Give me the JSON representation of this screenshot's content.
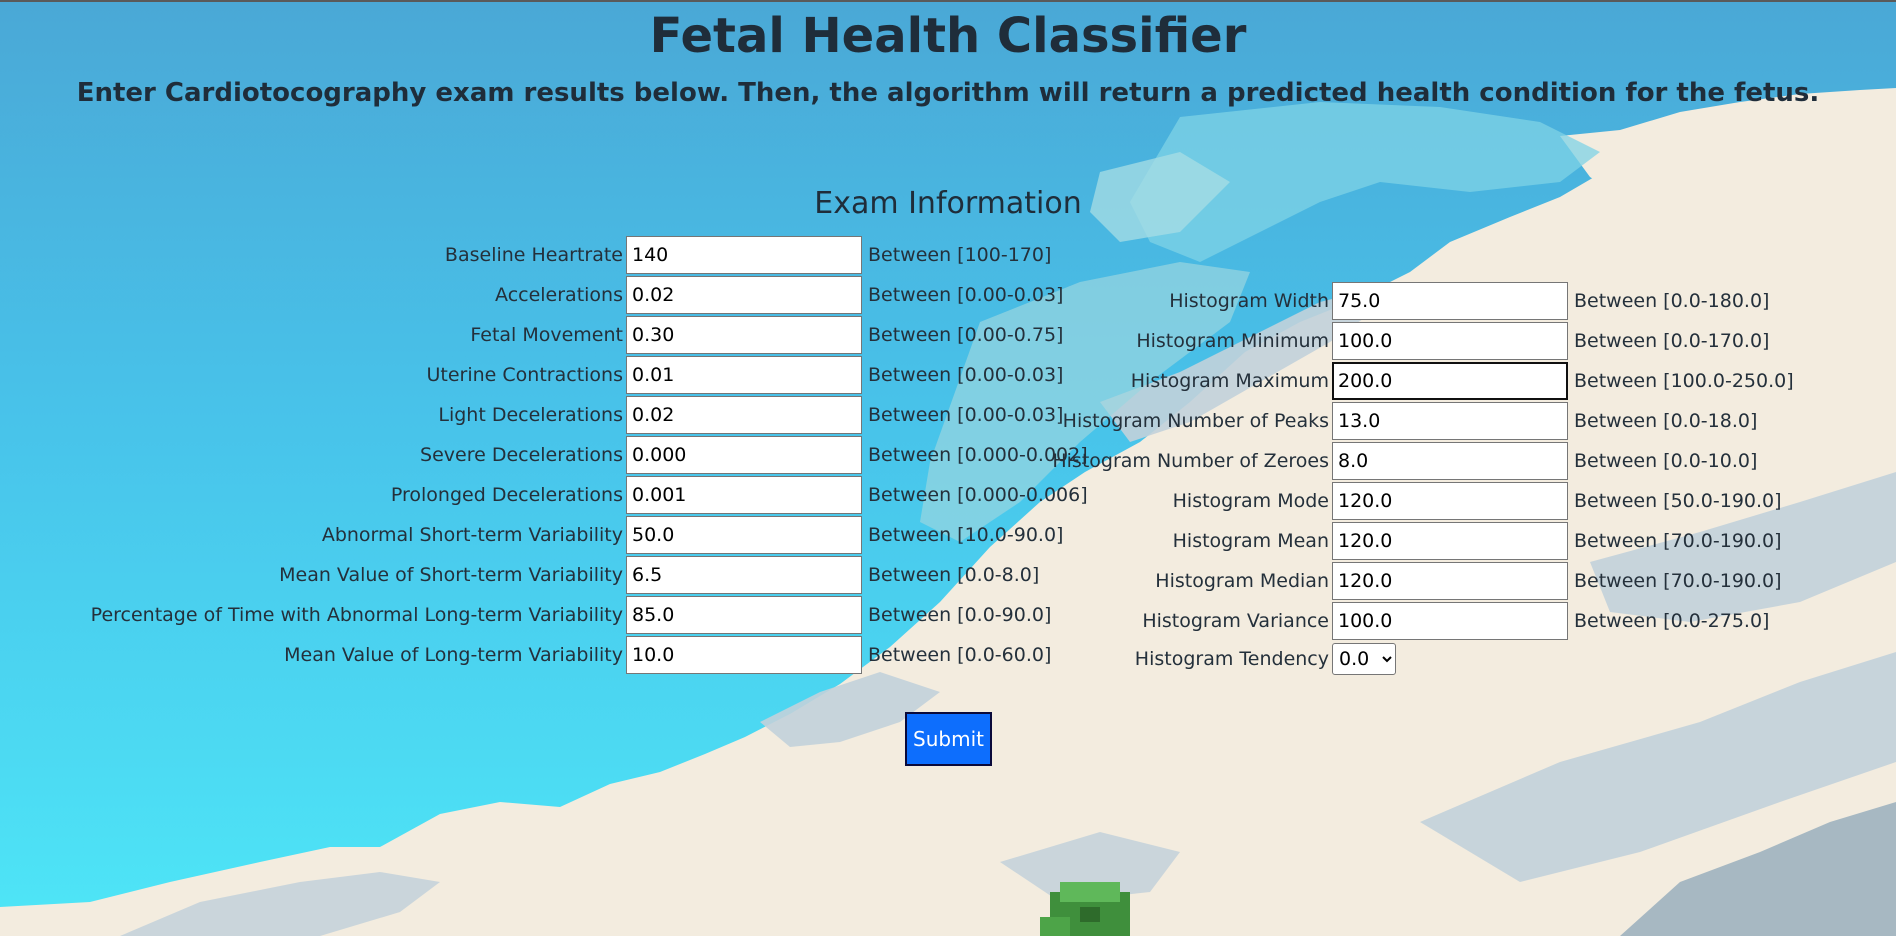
{
  "header": {
    "title": "Fetal Health Classifier",
    "subtitle": "Enter Cardiotocography exam results below. Then, the algorithm will return a predicted health condition for the fetus."
  },
  "form": {
    "section_title": "Exam Information",
    "left_fields": [
      {
        "label": "Baseline Heartrate",
        "value": "140",
        "range": "Between [100-170]"
      },
      {
        "label": "Accelerations",
        "value": "0.02",
        "range": "Between [0.00-0.03]"
      },
      {
        "label": "Fetal Movement",
        "value": "0.30",
        "range": "Between [0.00-0.75]"
      },
      {
        "label": "Uterine Contractions",
        "value": "0.01",
        "range": "Between [0.00-0.03]"
      },
      {
        "label": "Light Decelerations",
        "value": "0.02",
        "range": "Between [0.00-0.03]"
      },
      {
        "label": "Severe Decelerations",
        "value": "0.000",
        "range": "Between [0.000-0.002]"
      },
      {
        "label": "Prolonged Decelerations",
        "value": "0.001",
        "range": "Between [0.000-0.006]"
      },
      {
        "label": "Abnormal Short-term Variability",
        "value": "50.0",
        "range": "Between [10.0-90.0]"
      },
      {
        "label": "Mean Value of Short-term Variability",
        "value": "6.5",
        "range": "Between [0.0-8.0]"
      },
      {
        "label": "Percentage of Time with Abnormal Long-term Variability",
        "value": "85.0",
        "range": "Between [0.0-90.0]"
      },
      {
        "label": "Mean Value of Long-term Variability",
        "value": "10.0",
        "range": "Between [0.0-60.0]"
      }
    ],
    "right_fields": [
      {
        "label": "Histogram Width",
        "value": "75.0",
        "range": "Between [0.0-180.0]"
      },
      {
        "label": "Histogram Minimum",
        "value": "100.0",
        "range": "Between [0.0-170.0]"
      },
      {
        "label": "Histogram Maximum",
        "value": "200.0",
        "range": "Between [100.0-250.0]"
      },
      {
        "label": "Histogram Number of Peaks",
        "value": "13.0",
        "range": "Between [0.0-18.0]"
      },
      {
        "label": "Histogram Number of Zeroes",
        "value": "8.0",
        "range": "Between [0.0-10.0]"
      },
      {
        "label": "Histogram Mode",
        "value": "120.0",
        "range": "Between [50.0-190.0]"
      },
      {
        "label": "Histogram Mean",
        "value": "120.0",
        "range": "Between [70.0-190.0]"
      },
      {
        "label": "Histogram Median",
        "value": "120.0",
        "range": "Between [70.0-190.0]"
      },
      {
        "label": "Histogram Variance",
        "value": "100.0",
        "range": "Between [0.0-275.0]"
      }
    ],
    "tendency": {
      "label": "Histogram Tendency",
      "selected": "0.0"
    },
    "submit_label": "Submit"
  },
  "theme": {
    "submit_color": "#0d6efd",
    "sky_color": "#48c3ea",
    "land_color": "#f3ecdf"
  }
}
